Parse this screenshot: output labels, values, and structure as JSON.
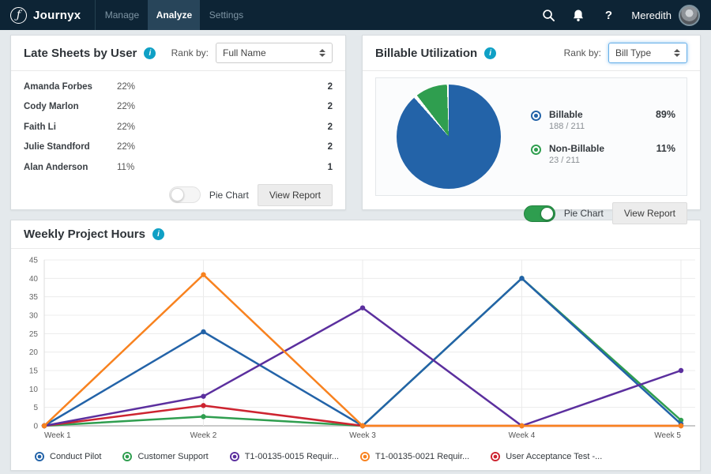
{
  "nav": {
    "brand": "Journyx",
    "tabs": [
      {
        "label": "Manage",
        "active": false
      },
      {
        "label": "Analyze",
        "active": true
      },
      {
        "label": "Settings",
        "active": false
      }
    ],
    "user_name": "Meredith"
  },
  "late_sheets": {
    "title": "Late Sheets by User",
    "rank_by_label": "Rank by:",
    "rank_by_value": "Full Name",
    "toggle_label": "Pie Chart",
    "toggle_on": false,
    "view_report_label": "View Report"
  },
  "billable": {
    "title": "Billable Utilization",
    "rank_by_label": "Rank by:",
    "rank_by_value": "Bill Type",
    "toggle_label": "Pie Chart",
    "toggle_on": true,
    "view_report_label": "View Report"
  },
  "weekly": {
    "title": "Weekly Project Hours"
  },
  "accent_colors": {
    "nav_bg": "#0d2435",
    "info_teal": "#0fa0c5",
    "toggle_green": "#2e9e4f"
  },
  "chart_data": [
    {
      "id": "late-sheets-bar",
      "type": "bar",
      "orientation": "horizontal",
      "categories": [
        "Amanda Forbes",
        "Cody Marlon",
        "Faith Li",
        "Julie Standford",
        "Alan Anderson"
      ],
      "values": [
        22,
        22,
        22,
        22,
        11
      ],
      "percent_labels": [
        "22%",
        "22%",
        "22%",
        "22%",
        "11%"
      ],
      "counts": [
        2,
        2,
        2,
        2,
        1
      ],
      "colors": [
        "#2363a8",
        "#2f9e4f",
        "#5b2f9e",
        "#f8821f",
        "#cd2430"
      ],
      "xlim": [
        0,
        26
      ]
    },
    {
      "id": "billable-pie",
      "type": "pie",
      "slices": [
        {
          "label": "Billable",
          "value": 89,
          "detail": "188 / 211",
          "pct_label": "89%",
          "color": "#2363a8"
        },
        {
          "label": "Non-Billable",
          "value": 11,
          "detail": "23 / 211",
          "pct_label": "11%",
          "color": "#2f9e4f"
        }
      ],
      "start_angle_deg": 0,
      "direction": "clockwise"
    },
    {
      "id": "weekly-line",
      "type": "line",
      "title": "Weekly Project Hours",
      "x": [
        "Week 1",
        "Week 2",
        "Week 3",
        "Week 4",
        "Week 5"
      ],
      "ylim": [
        0,
        45
      ],
      "ytick_step": 5,
      "grid": true,
      "legend_position": "bottom",
      "series": [
        {
          "name": "Conduct Pilot",
          "color": "#2363a8",
          "values": [
            0,
            25.5,
            0,
            40,
            0.5
          ]
        },
        {
          "name": "Customer Support",
          "color": "#2f9e4f",
          "values": [
            0,
            2.5,
            0,
            40,
            1.5
          ]
        },
        {
          "name": "T1-00135-0015 Requir...",
          "color": "#5b2f9e",
          "values": [
            0,
            8,
            32,
            0,
            15
          ]
        },
        {
          "name": "T1-00135-0021 Requir...",
          "color": "#f8821f",
          "values": [
            0,
            41,
            0,
            0,
            0
          ]
        },
        {
          "name": "User Acceptance Test -...",
          "color": "#cd2430",
          "values": [
            0,
            5.5,
            0,
            0,
            0
          ]
        }
      ],
      "draw_order": [
        1,
        0,
        4,
        2,
        3
      ]
    }
  ]
}
